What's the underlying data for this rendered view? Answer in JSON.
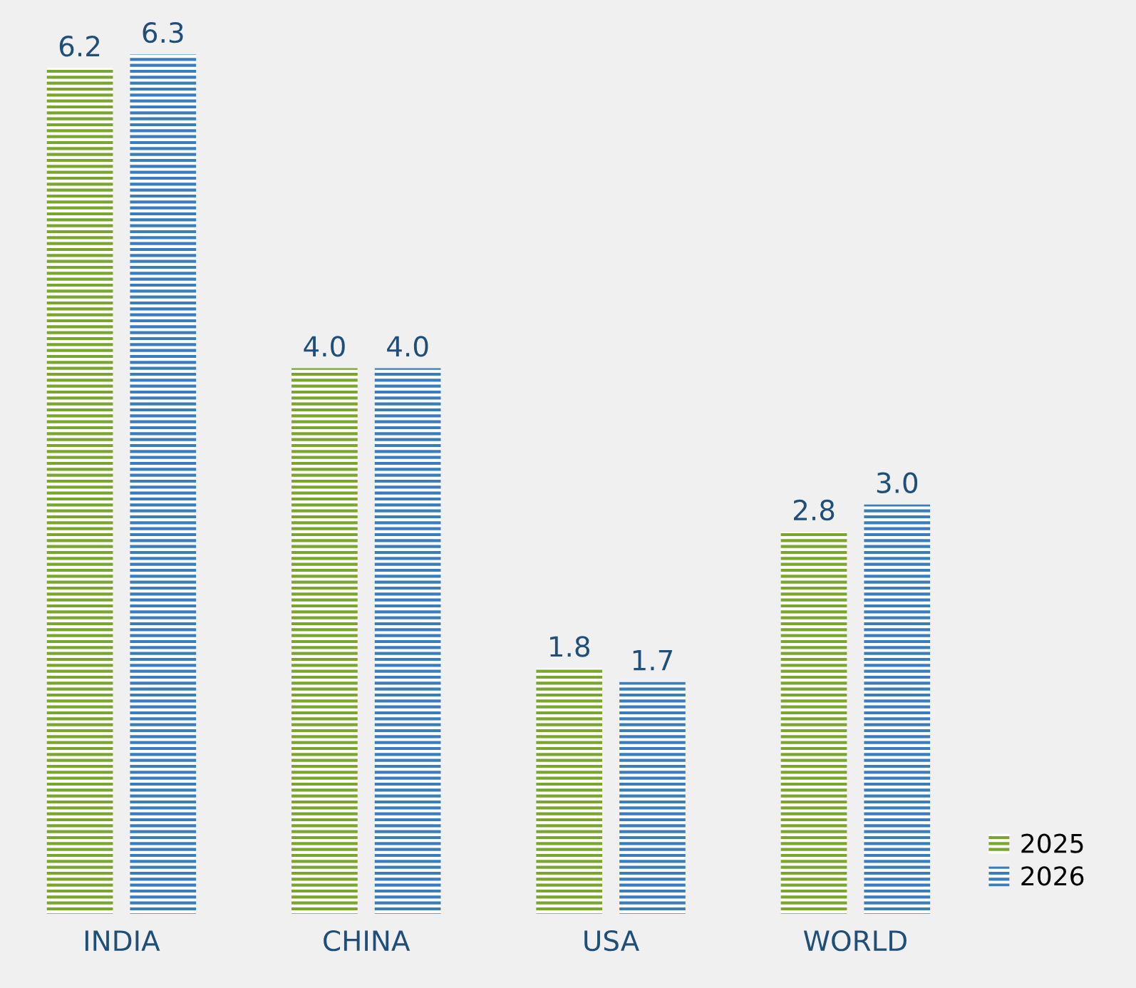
{
  "chart_data": {
    "type": "bar",
    "categories": [
      "INDIA",
      "CHINA",
      "USA",
      "WORLD"
    ],
    "series": [
      {
        "name": "2025",
        "color": "#7aa62b",
        "values": [
          6.2,
          4.0,
          1.8,
          2.8
        ],
        "value_labels": [
          "6.2",
          "4.0",
          "1.8",
          "2.8"
        ]
      },
      {
        "name": "2026",
        "color": "#3a7dbf",
        "values": [
          6.3,
          4.0,
          1.7,
          3.0
        ],
        "value_labels": [
          "6.3",
          "4.0",
          "1.7",
          "3.0"
        ]
      }
    ],
    "legend": "bottom right"
  }
}
